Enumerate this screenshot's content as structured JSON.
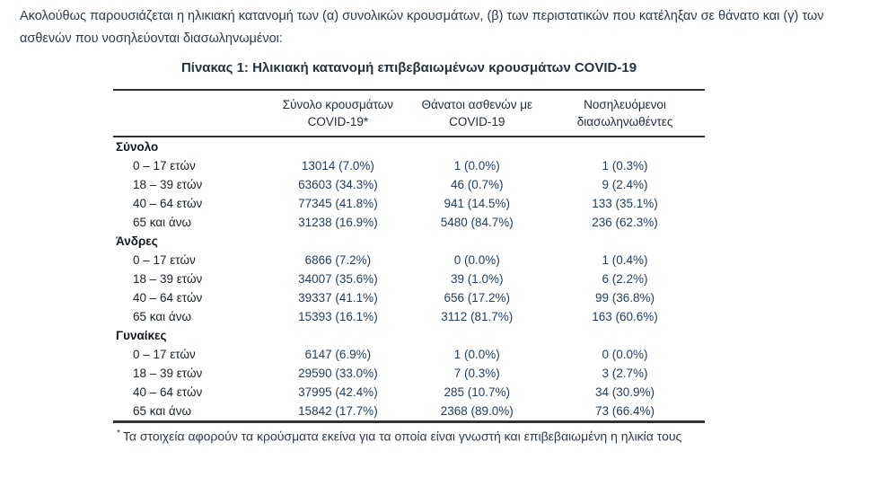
{
  "intro": {
    "lines": [
      "Ακολούθως παρουσιάζεται η ηλικιακή κατανομή των (α) συνολικών κρουσμάτων, (β) των περιστατικών που κατέληξαν σε θάνατο και (γ) των",
      "ασθενών που νοσηλεύονται διασωληνωμένοι:"
    ]
  },
  "table": {
    "title": "Πίνακας 1: Ηλικιακή κατανομή επιβεβαιωμένων κρουσμάτων COVID-19",
    "columns": [
      {
        "line1": "Σύνολο κρουσμάτων",
        "line2": "COVID-19*"
      },
      {
        "line1": "Θάνατοι ασθενών με",
        "line2": "COVID-19"
      },
      {
        "line1": "Νοσηλευόμενοι",
        "line2": "διασωληνωθέντες"
      }
    ],
    "groups": [
      {
        "name": "Σύνολο",
        "rows": [
          {
            "label": "0 – 17 ετών",
            "values": [
              "13014 (7.0%)",
              "1 (0.0%)",
              "1 (0.3%)"
            ]
          },
          {
            "label": "18 – 39 ετών",
            "values": [
              "63603 (34.3%)",
              "46 (0.7%)",
              "9 (2.4%)"
            ]
          },
          {
            "label": "40 – 64 ετών",
            "values": [
              "77345 (41.8%)",
              "941 (14.5%)",
              "133 (35.1%)"
            ]
          },
          {
            "label": "65 και άνω",
            "values": [
              "31238 (16.9%)",
              "5480 (84.7%)",
              "236 (62.3%)"
            ]
          }
        ]
      },
      {
        "name": "Άνδρες",
        "rows": [
          {
            "label": "0 – 17 ετών",
            "values": [
              "6866 (7.2%)",
              "0 (0.0%)",
              "1 (0.4%)"
            ]
          },
          {
            "label": "18 – 39 ετών",
            "values": [
              "34007 (35.6%)",
              "39 (1.0%)",
              "6 (2.2%)"
            ]
          },
          {
            "label": "40 – 64 ετών",
            "values": [
              "39337 (41.1%)",
              "656 (17.2%)",
              "99 (36.8%)"
            ]
          },
          {
            "label": "65 και άνω",
            "values": [
              "15393 (16.1%)",
              "3112 (81.7%)",
              "163 (60.6%)"
            ]
          }
        ]
      },
      {
        "name": "Γυναίκες",
        "rows": [
          {
            "label": "0 – 17 ετών",
            "values": [
              "6147 (6.9%)",
              "1 (0.0%)",
              "0 (0.0%)"
            ]
          },
          {
            "label": "18 – 39 ετών",
            "values": [
              "29590 (33.0%)",
              "7 (0.3%)",
              "3 (2.7%)"
            ]
          },
          {
            "label": "40 – 64 ετών",
            "values": [
              "37995 (42.4%)",
              "285 (10.7%)",
              "34 (30.9%)"
            ]
          },
          {
            "label": "65 και άνω",
            "values": [
              "15842 (17.7%)",
              "2368 (89.0%)",
              "73 (66.4%)"
            ]
          }
        ]
      }
    ],
    "footnote": {
      "marker": "*",
      "text": "Τα στοιχεία αφορούν τα κρούσματα εκείνα για τα οποία είναι γνωστή και επιβεβαιωμένη η ηλικία τους"
    }
  }
}
